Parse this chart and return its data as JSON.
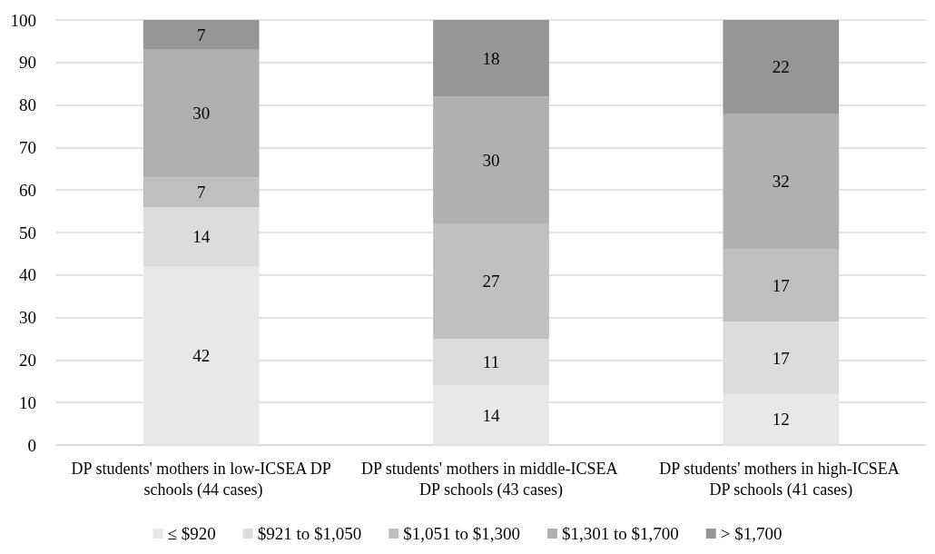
{
  "chart_data": {
    "type": "bar",
    "stacked": true,
    "categories": [
      "DP students' mothers in low-ICSEA DP schools (44 cases)",
      "DP students' mothers in middle-ICSEA DP schools (43 cases)",
      "DP students' mothers in high-ICSEA DP schools (41 cases)"
    ],
    "series": [
      {
        "name": "≤ $920",
        "color": "#e8e8e8",
        "values": [
          42,
          14,
          12
        ]
      },
      {
        "name": "$921 to $1,050",
        "color": "#dcdcdc",
        "values": [
          14,
          11,
          17
        ]
      },
      {
        "name": "$1,051 to $1,300",
        "color": "#bfbfbf",
        "values": [
          7,
          27,
          17
        ]
      },
      {
        "name": "$1,301 to $1,700",
        "color": "#b0b0b0",
        "values": [
          30,
          30,
          32
        ]
      },
      {
        "name": "> $1,700",
        "color": "#969696",
        "values": [
          7,
          18,
          22
        ]
      }
    ],
    "ylim": [
      0,
      100
    ],
    "yticks": [
      0,
      10,
      20,
      30,
      40,
      50,
      60,
      70,
      80,
      90,
      100
    ],
    "grid": "y",
    "legend": "bottom",
    "data_labels": true
  }
}
